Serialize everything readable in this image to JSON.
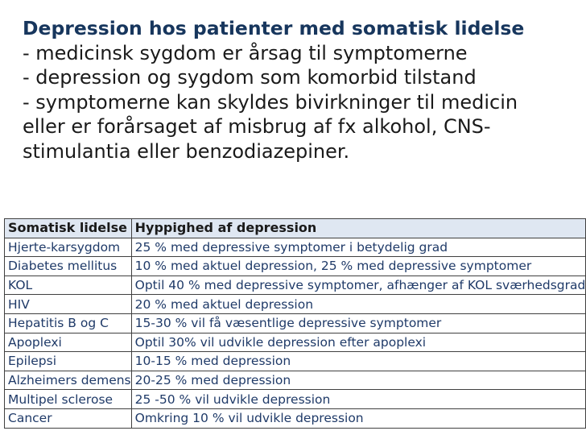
{
  "heading": {
    "title": "Depression hos patienter med somatisk lidelse",
    "lines": [
      "- medicinsk sygdom er årsag til symptomerne",
      "- depression og sygdom som komorbid tilstand",
      "- symptomerne kan skyldes bivirkninger til medicin",
      "eller er forårsaget af misbrug af fx alkohol, CNS-",
      "stimulantia eller benzodiazepiner."
    ]
  },
  "table": {
    "headers": [
      "Somatisk lidelse",
      "Hyppighed af depression"
    ],
    "rows": [
      [
        "Hjerte-karsygdom",
        "25 % med depressive symptomer i betydelig grad"
      ],
      [
        "Diabetes mellitus",
        "10 % med aktuel depression, 25 % med depressive symptomer"
      ],
      [
        "KOL",
        "Optil 40 % med depressive symptomer, afhænger af KOL sværhedsgrad"
      ],
      [
        "HIV",
        "20 % med aktuel depression"
      ],
      [
        "Hepatitis B og C",
        "15-30 % vil få væsentlige depressive symptomer"
      ],
      [
        "Apoplexi",
        "Optil 30% vil udvikle depression efter apoplexi"
      ],
      [
        "Epilepsi",
        "10-15 % med depression"
      ],
      [
        "Alzheimers demens",
        "20-25 % med depression"
      ],
      [
        "Multipel sclerose",
        "25 -50 % vil udvikle depression"
      ],
      [
        "Cancer",
        "Omkring 10 % vil udvikle depression"
      ]
    ]
  }
}
